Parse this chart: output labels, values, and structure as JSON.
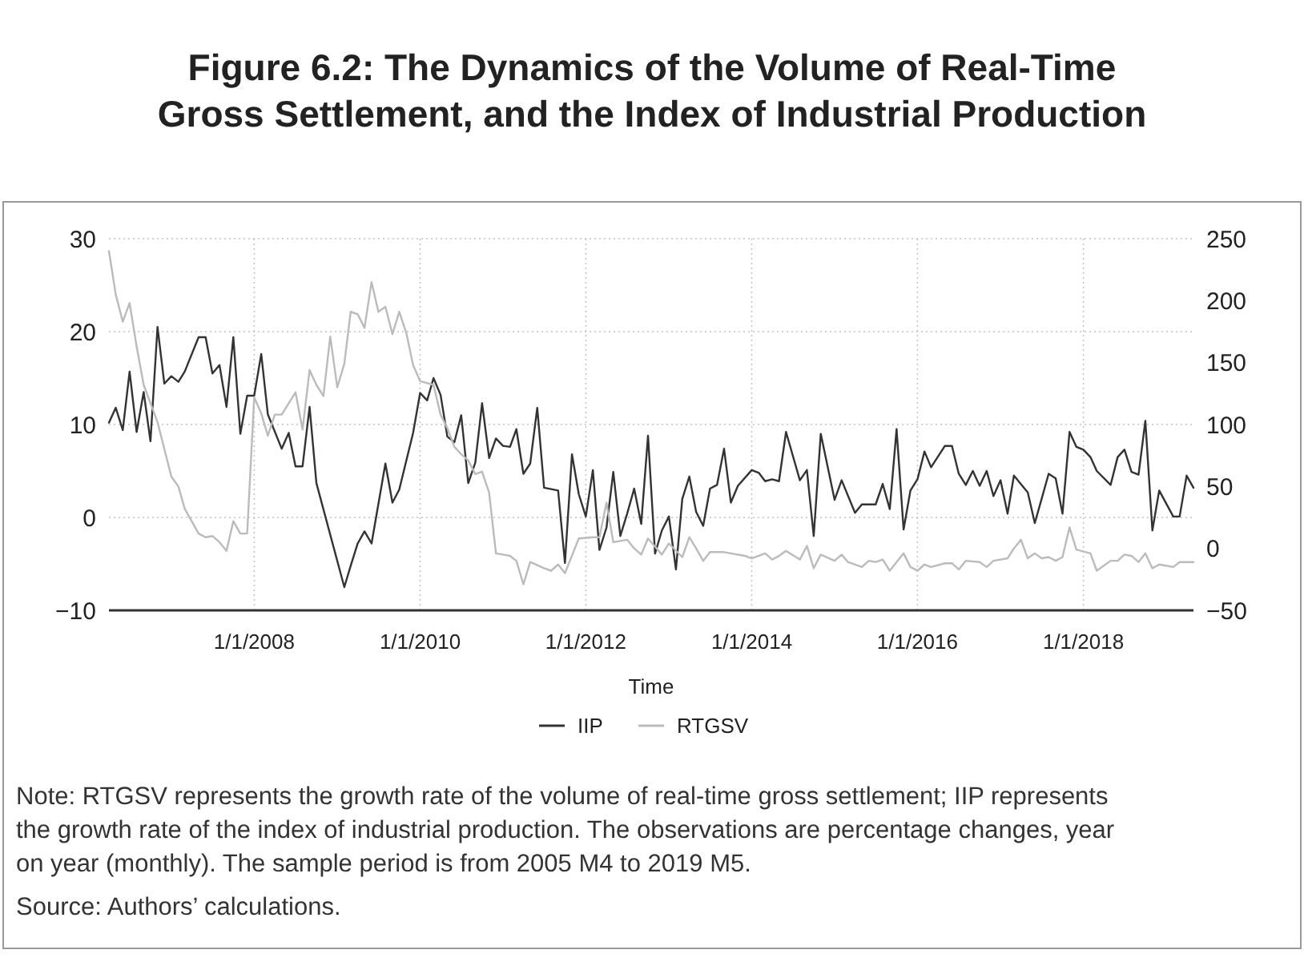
{
  "chart_data": {
    "type": "line",
    "title": "Figure 6.2: The Dynamics of the Volume of Real-Time Gross Settlement, and the Index of Industrial Production",
    "xlabel": "Time",
    "xlim": [
      "2006-04",
      "2019-05"
    ],
    "xticks": [
      {
        "value": "2008-01",
        "label": "1/1/2008"
      },
      {
        "value": "2010-01",
        "label": "1/1/2010"
      },
      {
        "value": "2012-01",
        "label": "1/1/2012"
      },
      {
        "value": "2014-01",
        "label": "1/1/2014"
      },
      {
        "value": "2016-01",
        "label": "1/1/2016"
      },
      {
        "value": "2018-01",
        "label": "1/1/2018"
      }
    ],
    "ylim": [
      -10,
      30
    ],
    "yticks": [
      {
        "value": -10,
        "label": "−10"
      },
      0,
      10,
      20,
      30
    ],
    "y2lim": [
      -50,
      250
    ],
    "y2ticks": [
      {
        "value": -50,
        "label": "−50"
      },
      0,
      50,
      100,
      150,
      200,
      250
    ],
    "grid": true,
    "legend": "bottom",
    "series": [
      {
        "name": "IIP",
        "color": "#333333",
        "x": [
          "2006-04",
          "2006-05",
          "2006-06",
          "2006-07",
          "2006-08",
          "2006-09",
          "2006-10",
          "2006-11",
          "2006-12",
          "2007-01",
          "2007-02",
          "2007-03",
          "2007-05",
          "2007-06",
          "2007-07",
          "2007-08",
          "2007-09",
          "2007-10",
          "2007-11",
          "2007-12",
          "2008-01",
          "2008-02",
          "2008-03",
          "2008-05",
          "2008-06",
          "2008-07",
          "2008-08",
          "2008-09",
          "2008-10",
          "2009-02",
          "2009-03",
          "2009-04",
          "2009-05",
          "2009-06",
          "2009-08",
          "2009-09",
          "2009-10",
          "2009-12",
          "2010-01",
          "2010-02",
          "2010-03",
          "2010-04",
          "2010-05",
          "2010-06",
          "2010-07",
          "2010-08",
          "2010-09",
          "2010-10",
          "2010-11",
          "2010-12",
          "2011-01",
          "2011-02",
          "2011-03",
          "2011-04",
          "2011-05",
          "2011-06",
          "2011-07",
          "2011-09",
          "2011-10",
          "2011-11",
          "2011-12",
          "2012-01",
          "2012-02",
          "2012-03",
          "2012-04",
          "2012-05",
          "2012-06",
          "2012-07",
          "2012-08",
          "2012-09",
          "2012-10",
          "2012-11",
          "2012-12",
          "2013-01",
          "2013-02",
          "2013-03",
          "2013-04",
          "2013-05",
          "2013-06",
          "2013-07",
          "2013-08",
          "2013-09",
          "2013-10",
          "2013-11",
          "2014-01",
          "2014-02",
          "2014-03",
          "2014-04",
          "2014-05",
          "2014-06",
          "2014-08",
          "2014-09",
          "2014-10",
          "2014-11",
          "2015-01",
          "2015-02",
          "2015-04",
          "2015-05",
          "2015-07",
          "2015-08",
          "2015-09",
          "2015-10",
          "2015-11",
          "2015-12",
          "2016-01",
          "2016-02",
          "2016-03",
          "2016-05",
          "2016-06",
          "2016-07",
          "2016-08",
          "2016-09",
          "2016-10",
          "2016-11",
          "2016-12",
          "2017-01",
          "2017-02",
          "2017-03",
          "2017-05",
          "2017-06",
          "2017-07",
          "2017-08",
          "2017-09",
          "2017-10",
          "2017-11",
          "2017-12",
          "2018-01",
          "2018-02",
          "2018-03",
          "2018-05",
          "2018-06",
          "2018-07",
          "2018-08",
          "2018-09",
          "2018-10",
          "2018-11",
          "2018-12",
          "2019-02",
          "2019-03",
          "2019-04",
          "2019-05"
        ],
        "values": [
          10.2,
          11.8,
          9.4,
          15.7,
          9.2,
          13.5,
          8.2,
          20.5,
          14.4,
          15.2,
          14.6,
          15.7,
          19.4,
          19.4,
          15.5,
          16.4,
          11.9,
          19.4,
          9.0,
          13.1,
          13.1,
          17.6,
          11.1,
          7.4,
          9.1,
          5.5,
          5.5,
          11.9,
          3.7,
          -7.5,
          -5.2,
          -2.8,
          -1.5,
          -2.8,
          5.8,
          1.6,
          3.0,
          9.1,
          13.4,
          12.6,
          15.0,
          13.2,
          8.7,
          8.1,
          11.0,
          3.7,
          5.9,
          12.3,
          6.4,
          8.5,
          7.7,
          7.6,
          9.5,
          4.7,
          5.8,
          11.8,
          3.2,
          2.9,
          -4.9,
          6.8,
          2.5,
          0.1,
          5.1,
          -3.5,
          -1.1,
          4.9,
          -2.0,
          0.4,
          3.1,
          -0.7,
          8.8,
          -3.9,
          -1.4,
          0.1,
          -5.6,
          2.0,
          4.4,
          0.6,
          -0.9,
          3.1,
          3.5,
          7.4,
          1.6,
          3.4,
          5.1,
          4.8,
          3.9,
          4.1,
          3.9,
          9.2,
          4.0,
          5.1,
          -2.0,
          9.0,
          1.9,
          4.0,
          0.5,
          1.4,
          1.4,
          3.6,
          0.9,
          9.5,
          -1.3,
          2.9,
          4.1,
          7.1,
          5.4,
          7.7,
          7.7,
          4.7,
          3.5,
          5.0,
          3.4,
          5.0,
          2.3,
          4.0,
          0.4,
          4.5,
          2.7,
          -0.6,
          2.0,
          4.7,
          4.2,
          0.4,
          9.2,
          7.6,
          7.3,
          6.5,
          5.0,
          3.5,
          6.5,
          7.3,
          4.9,
          4.6,
          10.4,
          -1.4,
          2.9,
          0.1,
          0.1,
          4.5,
          3.2
        ]
      },
      {
        "name": "RTGSV",
        "color": "#bbbbbb",
        "axis": "y2",
        "x": [
          "2006-04",
          "2006-05",
          "2006-06",
          "2006-07",
          "2006-08",
          "2006-09",
          "2006-11",
          "2007-01",
          "2007-02",
          "2007-03",
          "2007-05",
          "2007-06",
          "2007-07",
          "2007-08",
          "2007-09",
          "2007-10",
          "2007-11",
          "2007-12",
          "2008-01",
          "2008-02",
          "2008-03",
          "2008-04",
          "2008-05",
          "2008-07",
          "2008-08",
          "2008-09",
          "2008-10",
          "2008-11",
          "2008-12",
          "2009-01",
          "2009-02",
          "2009-03",
          "2009-04",
          "2009-05",
          "2009-06",
          "2009-07",
          "2009-08",
          "2009-09",
          "2009-10",
          "2009-11",
          "2009-12",
          "2010-01",
          "2010-03",
          "2010-04",
          "2010-05",
          "2010-06",
          "2010-07",
          "2010-08",
          "2010-09",
          "2010-10",
          "2010-11",
          "2010-12",
          "2011-01",
          "2011-02",
          "2011-03",
          "2011-04",
          "2011-05",
          "2011-07",
          "2011-08",
          "2011-09",
          "2011-10",
          "2011-12",
          "2012-02",
          "2012-03",
          "2012-04",
          "2012-05",
          "2012-07",
          "2012-08",
          "2012-09",
          "2012-10",
          "2012-12",
          "2013-01",
          "2013-03",
          "2013-04",
          "2013-05",
          "2013-06",
          "2013-07",
          "2013-09",
          "2013-10",
          "2013-12",
          "2014-01",
          "2014-03",
          "2014-04",
          "2014-05",
          "2014-06",
          "2014-08",
          "2014-09",
          "2014-10",
          "2014-11",
          "2015-01",
          "2015-02",
          "2015-03",
          "2015-05",
          "2015-06",
          "2015-07",
          "2015-08",
          "2015-09",
          "2015-11",
          "2015-12",
          "2016-01",
          "2016-02",
          "2016-03",
          "2016-05",
          "2016-06",
          "2016-07",
          "2016-08",
          "2016-10",
          "2016-11",
          "2016-12",
          "2017-02",
          "2017-03",
          "2017-04",
          "2017-05",
          "2017-06",
          "2017-07",
          "2017-08",
          "2017-09",
          "2017-10",
          "2017-11",
          "2017-12",
          "2018-02",
          "2018-03",
          "2018-05",
          "2018-06",
          "2018-07",
          "2018-08",
          "2018-09",
          "2018-10",
          "2018-11",
          "2018-12",
          "2019-02",
          "2019-03",
          "2019-04",
          "2019-05"
        ],
        "values": [
          240,
          205,
          183,
          198,
          163,
          132,
          102,
          58,
          50,
          32,
          12,
          9,
          10,
          5,
          -2,
          22,
          12,
          12,
          122,
          109,
          91,
          108,
          108,
          126,
          96,
          144,
          132,
          123,
          171,
          130,
          149,
          191,
          189,
          178,
          215,
          191,
          195,
          173,
          191,
          174,
          148,
          135,
          132,
          108,
          97,
          82,
          76,
          71,
          60,
          62,
          45,
          -4,
          -5,
          -6,
          -10,
          -29,
          -11,
          -16,
          -18,
          -13,
          -20,
          8,
          9,
          9,
          37,
          5,
          7,
          0,
          -5,
          8,
          -5,
          4,
          -7,
          9,
          0,
          -10,
          -3,
          -3,
          -4,
          -6,
          -8,
          -4,
          -9,
          -6,
          -2,
          -9,
          2,
          -16,
          -5,
          -10,
          -5,
          -11,
          -15,
          -10,
          -11,
          -9,
          -18,
          -4,
          -15,
          -18,
          -13,
          -15,
          -12,
          -12,
          -17,
          -10,
          -11,
          -15,
          -10,
          -8,
          0,
          7,
          -8,
          -4,
          -8,
          -7,
          -10,
          -7,
          17,
          -1,
          -4,
          -18,
          -10,
          -10,
          -5,
          -6,
          -11,
          -4,
          -16,
          -13,
          -15,
          -11,
          -11,
          -11
        ]
      }
    ],
    "annotations": [
      "Note: RTGSV represents the growth rate of the volume of real-time gross settlement; IIP represents the growth rate of the index of industrial production. The observations are percentage changes, year on year (monthly). The sample period is from 2005 M4 to 2019 M5.",
      "Source: Authors’ calculations."
    ]
  }
}
